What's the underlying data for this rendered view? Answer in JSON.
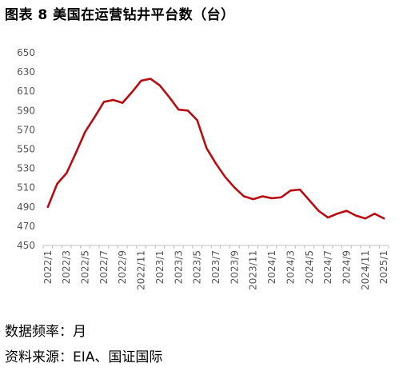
{
  "title": "图表 8 美国在运营钻井平台数（台）",
  "footer": {
    "frequency": "数据频率：月",
    "source": "资料来源：EIA、国证国际"
  },
  "chart_data": {
    "type": "line",
    "title": "",
    "xlabel": "",
    "ylabel": "",
    "ylim": [
      450,
      650
    ],
    "yticks": [
      450,
      470,
      490,
      510,
      530,
      550,
      570,
      590,
      610,
      630,
      650
    ],
    "grid": false,
    "line_color": "#b80c12",
    "x": [
      "2022/1",
      "2022/2",
      "2022/3",
      "2022/4",
      "2022/5",
      "2022/6",
      "2022/7",
      "2022/8",
      "2022/9",
      "2022/10",
      "2022/11",
      "2022/12",
      "2023/1",
      "2023/2",
      "2023/3",
      "2023/4",
      "2023/5",
      "2023/6",
      "2023/7",
      "2023/8",
      "2023/9",
      "2023/10",
      "2023/11",
      "2023/12",
      "2024/1",
      "2024/2",
      "2024/3",
      "2024/4",
      "2024/5",
      "2024/6",
      "2024/7",
      "2024/8",
      "2024/9",
      "2024/10",
      "2024/11",
      "2024/12",
      "2025/1"
    ],
    "xtick_labels": [
      "2022/1",
      "2022/3",
      "2022/5",
      "2022/7",
      "2022/9",
      "2022/11",
      "2023/1",
      "2023/3",
      "2023/5",
      "2023/7",
      "2023/9",
      "2023/11",
      "2024/1",
      "2024/3",
      "2024/5",
      "2024/7",
      "2024/9",
      "2024/11",
      "2025/1"
    ],
    "series": [
      {
        "name": "",
        "values": [
          490,
          514,
          525,
          546,
          568,
          583,
          599,
          601,
          598,
          609,
          621,
          623,
          616,
          604,
          591,
          590,
          580,
          551,
          535,
          521,
          510,
          501,
          498,
          501,
          499,
          500,
          507,
          508,
          497,
          486,
          479,
          483,
          486,
          481,
          478,
          483,
          478
        ]
      }
    ]
  }
}
